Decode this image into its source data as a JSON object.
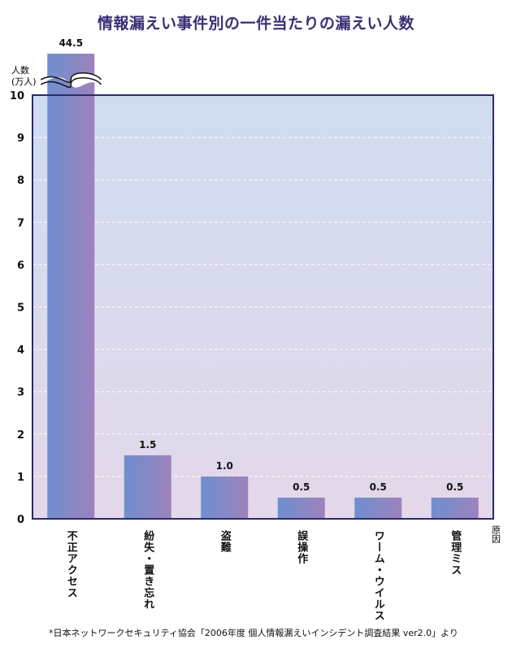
{
  "chart_data": {
    "type": "bar",
    "title": "情報漏えい事件別の一件当たりの漏えい人数",
    "ylabel_line1": "人数",
    "ylabel_line2": "(万人)",
    "xlabel": "原因",
    "ylim": [
      0,
      10
    ],
    "yticks": [
      "0",
      "1",
      "2",
      "3",
      "4",
      "5",
      "6",
      "7",
      "8",
      "9",
      "10"
    ],
    "grid": true,
    "categories": [
      "不正アクセス",
      "紛失・置き忘れ",
      "盗難",
      "誤操作",
      "ワーム・ウイルス",
      "管理ミス"
    ],
    "values": [
      44.5,
      1.5,
      1.0,
      0.5,
      0.5,
      0.5
    ],
    "value_labels": [
      "44.5",
      "1.5",
      "1.0",
      "0.5",
      "0.5",
      "0.5"
    ],
    "axis_break": true,
    "colors": {
      "bar_left": "#6f8fcf",
      "bar_right": "#9e82bd",
      "bg_top": "#cfdcf0",
      "bg_bottom": "#e4d8ea",
      "frame": "#2b2a6e",
      "title": "#3a2f74"
    }
  },
  "footnote": "*日本ネットワークセキュリティ協会「2006年度 個人情報漏えいインシデント調査結果 ver2.0」より"
}
